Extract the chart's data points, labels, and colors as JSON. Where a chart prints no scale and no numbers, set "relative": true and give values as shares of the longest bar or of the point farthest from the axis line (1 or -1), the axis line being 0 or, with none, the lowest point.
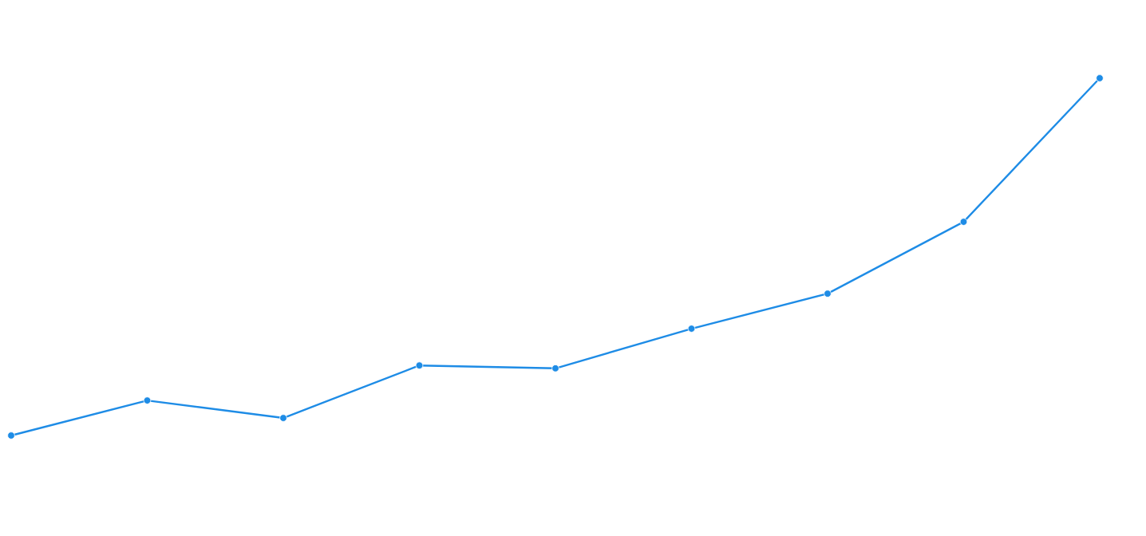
{
  "chart_data": {
    "type": "line",
    "relative": true,
    "marker": "circle",
    "color": "#1e8ce6",
    "categories": [
      null,
      null,
      null,
      null,
      null,
      null,
      null,
      null,
      null
    ],
    "values": [
      0,
      0.098,
      0.049,
      0.196,
      0.188,
      0.299,
      0.397,
      0.598,
      1
    ]
  }
}
